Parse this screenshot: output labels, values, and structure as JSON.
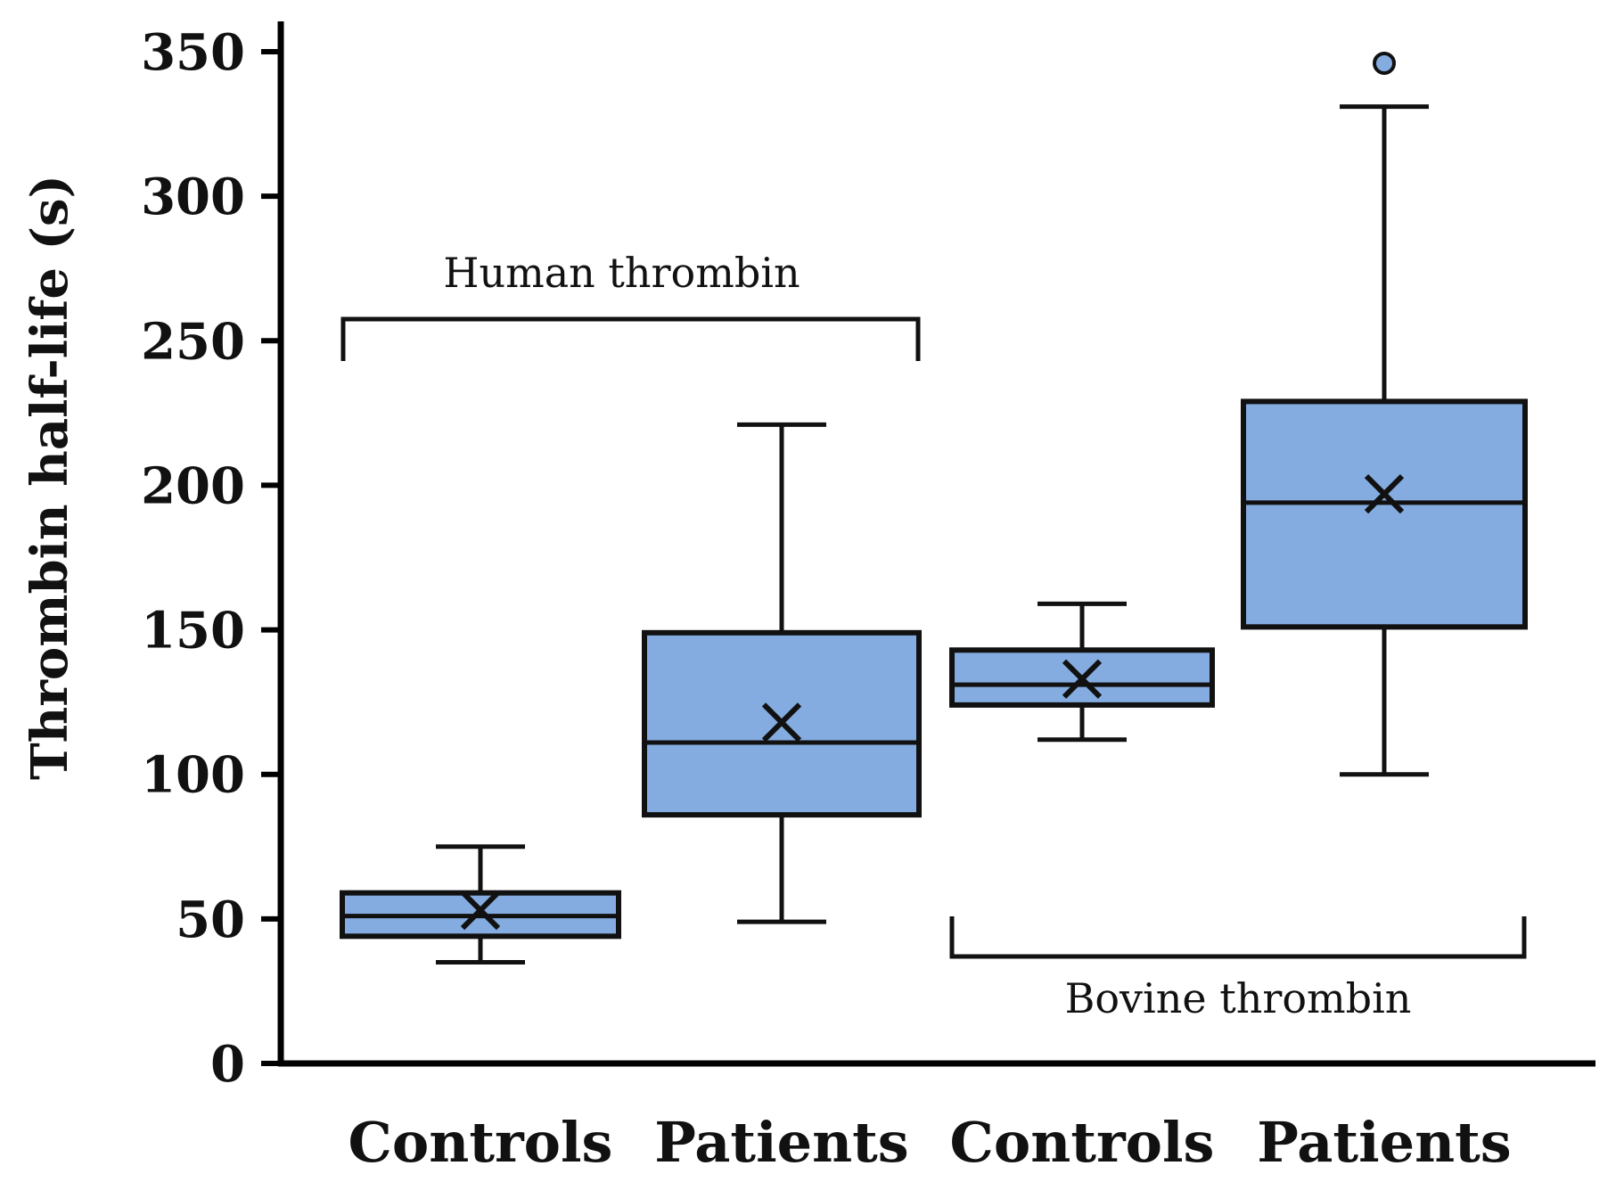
{
  "chart_data": {
    "type": "box",
    "ylabel": "Thrombin half-life (s)",
    "ylim": [
      0,
      350
    ],
    "yticks": [
      0,
      50,
      100,
      150,
      200,
      250,
      300,
      350
    ],
    "categories": [
      "Controls",
      "Patients",
      "Controls",
      "Patients"
    ],
    "groups": [
      {
        "label": "Human thrombin",
        "categories": [
          0,
          1
        ],
        "position": "above"
      },
      {
        "label": "Bovine thrombin",
        "categories": [
          2,
          3
        ],
        "position": "below"
      }
    ],
    "boxes": [
      {
        "category": "Controls",
        "group": "Human thrombin",
        "min": 35,
        "q1": 44,
        "median": 51,
        "q3": 59,
        "max": 75,
        "mean": 53,
        "outliers": []
      },
      {
        "category": "Patients",
        "group": "Human thrombin",
        "min": 49,
        "q1": 86,
        "median": 111,
        "q3": 149,
        "max": 221,
        "mean": 118,
        "outliers": []
      },
      {
        "category": "Controls",
        "group": "Bovine thrombin",
        "min": 112,
        "q1": 124,
        "median": 131,
        "q3": 143,
        "max": 159,
        "mean": 133,
        "outliers": []
      },
      {
        "category": "Patients",
        "group": "Bovine thrombin",
        "min": 100,
        "q1": 151,
        "median": 194,
        "q3": 229,
        "max": 331,
        "mean": 197,
        "outliers": [
          346
        ]
      }
    ],
    "colors": {
      "box_fill": "#84ace0",
      "outlier_fill": "#84ace0",
      "line": "#111111",
      "axis": "#000000"
    }
  }
}
